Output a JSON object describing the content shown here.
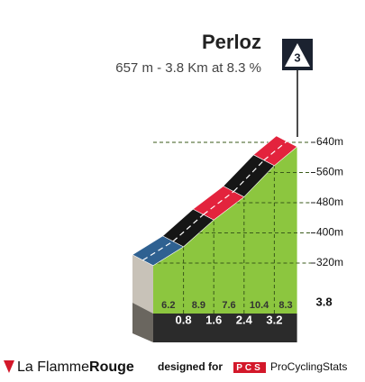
{
  "chart_data": {
    "type": "climb",
    "title": "Perloz",
    "subtitle": "657 m - 3.8 Km at 8.3 %",
    "category": "3",
    "x": [
      0,
      0.8,
      1.6,
      2.4,
      3.2,
      3.8
    ],
    "values": [
      342,
      392,
      463,
      524,
      607,
      657
    ],
    "gradients": [
      6.2,
      8.9,
      7.6,
      10.4,
      8.3
    ],
    "segment_colors": [
      "#2f6191",
      "#161616",
      "#e3233d",
      "#161616",
      "#e3233d"
    ],
    "face_color": "#8cc63f",
    "ylim": [
      320,
      640
    ],
    "yticks": [
      {
        "value": 320,
        "label": "320m"
      },
      {
        "value": 400,
        "label": "400m"
      },
      {
        "value": 480,
        "label": "480m"
      },
      {
        "value": 560,
        "label": "560m"
      },
      {
        "value": 640,
        "label": "640m"
      }
    ],
    "grid": true
  },
  "footer": {
    "brand_light": "La Flamme",
    "brand_bold": "Rouge",
    "designed_for": "designed for",
    "logo": "PCS",
    "site": "ProCyclingStats"
  }
}
